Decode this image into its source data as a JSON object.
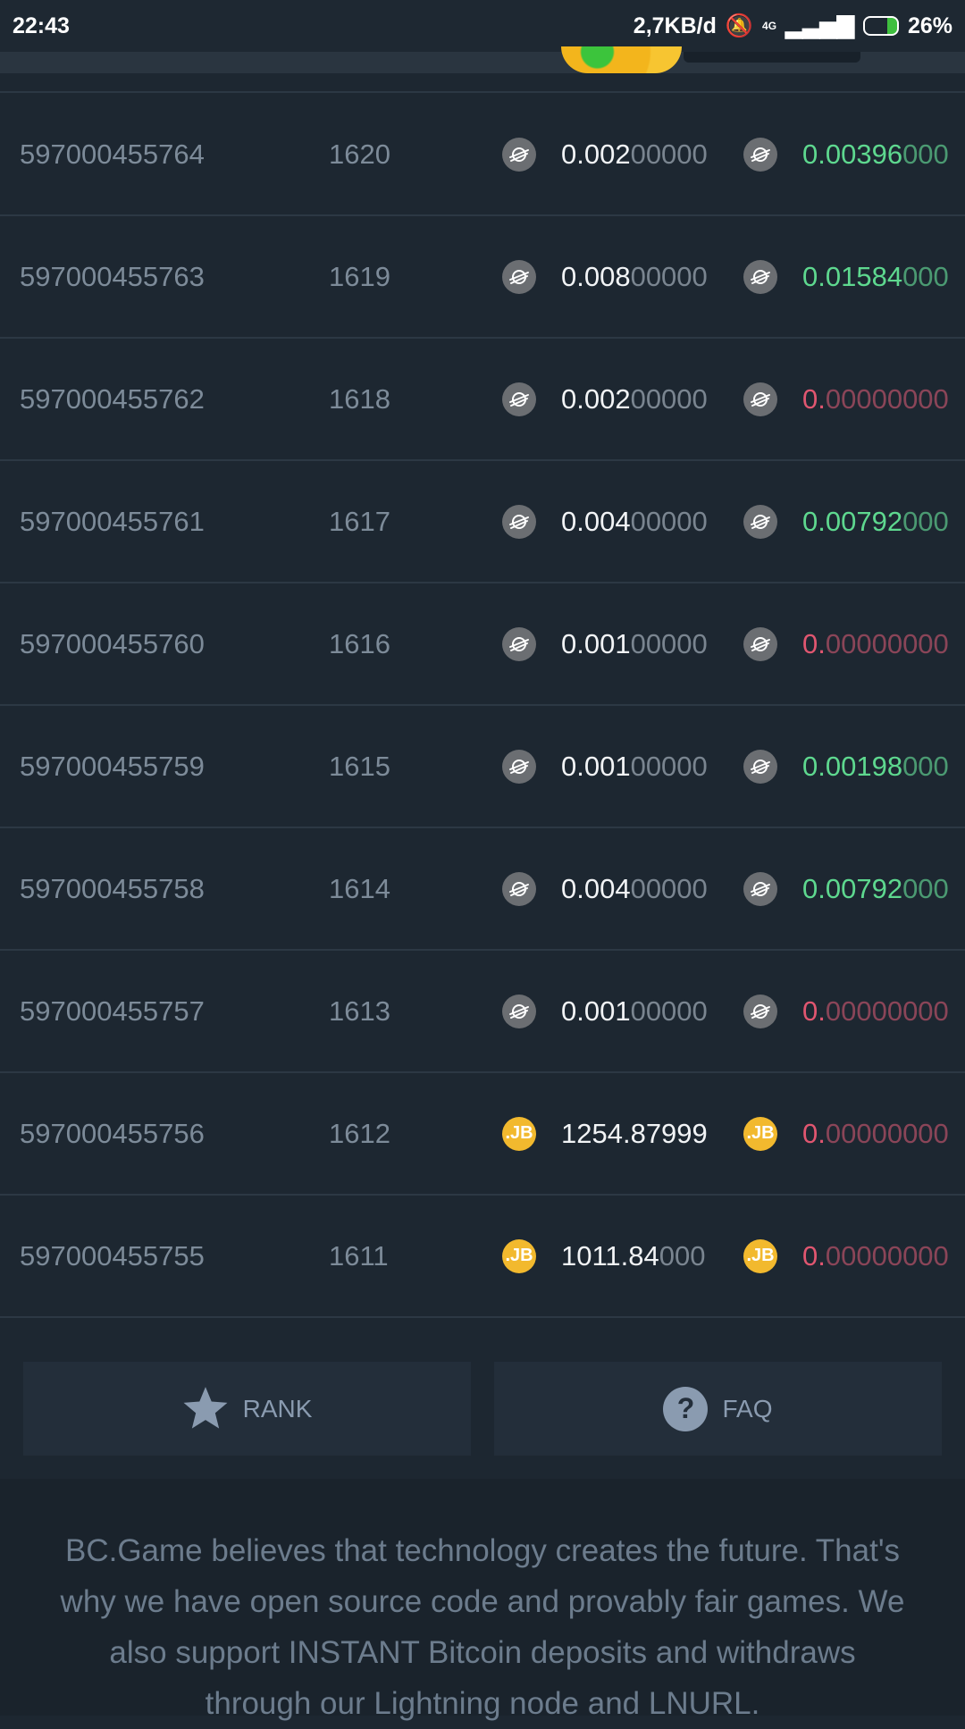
{
  "status_bar": {
    "time": "22:43",
    "speed": "2,7KB/d",
    "network": "4G",
    "battery": "26%"
  },
  "rows": [
    {
      "bet_id": "597000455764",
      "game": "1620",
      "coin": "xlm",
      "amount_hi": "0.002",
      "amount_lo": "00000",
      "payout_hi": "0.00396",
      "payout_lo": "000",
      "result": "win"
    },
    {
      "bet_id": "597000455763",
      "game": "1619",
      "coin": "xlm",
      "amount_hi": "0.008",
      "amount_lo": "00000",
      "payout_hi": "0.01584",
      "payout_lo": "000",
      "result": "win"
    },
    {
      "bet_id": "597000455762",
      "game": "1618",
      "coin": "xlm",
      "amount_hi": "0.002",
      "amount_lo": "00000",
      "payout_hi": "0.",
      "payout_lo": "00000000",
      "result": "loss"
    },
    {
      "bet_id": "597000455761",
      "game": "1617",
      "coin": "xlm",
      "amount_hi": "0.004",
      "amount_lo": "00000",
      "payout_hi": "0.00792",
      "payout_lo": "000",
      "result": "win"
    },
    {
      "bet_id": "597000455760",
      "game": "1616",
      "coin": "xlm",
      "amount_hi": "0.001",
      "amount_lo": "00000",
      "payout_hi": "0.",
      "payout_lo": "00000000",
      "result": "loss"
    },
    {
      "bet_id": "597000455759",
      "game": "1615",
      "coin": "xlm",
      "amount_hi": "0.001",
      "amount_lo": "00000",
      "payout_hi": "0.00198",
      "payout_lo": "000",
      "result": "win"
    },
    {
      "bet_id": "597000455758",
      "game": "1614",
      "coin": "xlm",
      "amount_hi": "0.004",
      "amount_lo": "00000",
      "payout_hi": "0.00792",
      "payout_lo": "000",
      "result": "win"
    },
    {
      "bet_id": "597000455757",
      "game": "1613",
      "coin": "xlm",
      "amount_hi": "0.001",
      "amount_lo": "00000",
      "payout_hi": "0.",
      "payout_lo": "00000000",
      "result": "loss"
    },
    {
      "bet_id": "597000455756",
      "game": "1612",
      "coin": "jb",
      "amount_hi": "1254.87999",
      "amount_lo": "",
      "payout_hi": "0.",
      "payout_lo": "00000000",
      "result": "loss"
    },
    {
      "bet_id": "597000455755",
      "game": "1611",
      "coin": "jb",
      "amount_hi": "1011.84",
      "amount_lo": "000",
      "payout_hi": "0.",
      "payout_lo": "00000000",
      "result": "loss"
    }
  ],
  "coin_labels": {
    "jb": ".JB"
  },
  "buttons": {
    "rank": "RANK",
    "faq": "FAQ",
    "faq_icon": "?"
  },
  "footer": {
    "text": "BC.Game believes that technology creates the future. That's why we have open source code and provably fair games. We also support INSTANT Bitcoin deposits and withdraws through our Lightning node and LNURL."
  },
  "colors": {
    "win": "#5ed88f",
    "loss": "#e05670",
    "jb": "#f2b92e",
    "xlm": "#6b6e72"
  }
}
